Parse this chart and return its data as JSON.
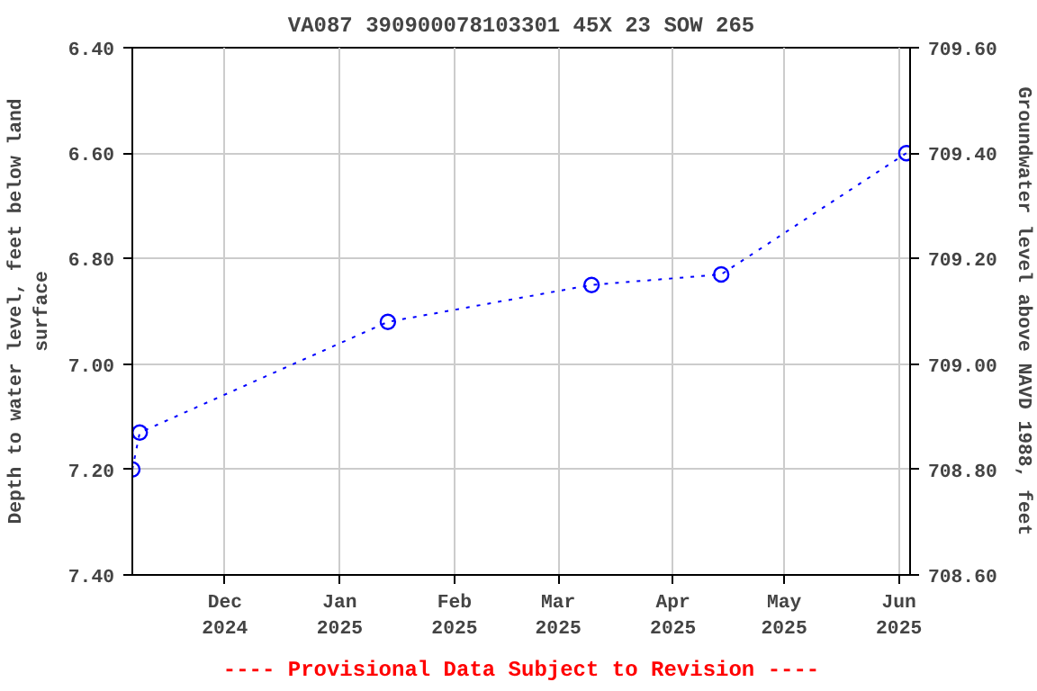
{
  "chart_data": {
    "type": "line",
    "title": "VA087 390900078103301 45X 23 SOW 265",
    "ylabel": "Depth to water level, feet below land surface",
    "y2label": "Groundwater level above NAVD 1988, feet",
    "x": [
      "2024-11-06",
      "2024-11-08",
      "2025-01-14",
      "2025-03-10",
      "2025-04-14",
      "2025-06-03"
    ],
    "series": [
      {
        "color": "#0000ff",
        "values": [
          7.2,
          7.13,
          6.92,
          6.85,
          6.83,
          6.6
        ]
      }
    ],
    "xlim": [
      "2024-11-06",
      "2025-06-04"
    ],
    "xticks": [
      {
        "value": "2024-12-01",
        "label": "Dec\n2024"
      },
      {
        "value": "2025-01-01",
        "label": "Jan\n2025"
      },
      {
        "value": "2025-02-01",
        "label": "Feb\n2025"
      },
      {
        "value": "2025-03-01",
        "label": "Mar\n2025"
      },
      {
        "value": "2025-04-01",
        "label": "Apr\n2025"
      },
      {
        "value": "2025-05-01",
        "label": "May\n2025"
      },
      {
        "value": "2025-06-01",
        "label": "Jun\n2025"
      }
    ],
    "ylim": [
      7.4,
      6.4
    ],
    "yticks": [
      {
        "value": 6.4,
        "label": "6.40"
      },
      {
        "value": 6.6,
        "label": "6.60"
      },
      {
        "value": 6.8,
        "label": "6.80"
      },
      {
        "value": 7.0,
        "label": "7.00"
      },
      {
        "value": 7.2,
        "label": "7.20"
      },
      {
        "value": 7.4,
        "label": "7.40"
      }
    ],
    "y2lim": [
      708.6,
      709.6
    ],
    "y2ticks": [
      {
        "value": 708.6,
        "label": "708.60"
      },
      {
        "value": 708.8,
        "label": "708.80"
      },
      {
        "value": 709.0,
        "label": "709.00"
      },
      {
        "value": 709.2,
        "label": "709.20"
      },
      {
        "value": 709.4,
        "label": "709.40"
      },
      {
        "value": 709.6,
        "label": "709.60"
      }
    ],
    "annotations": [
      "---- Provisional Data Subject to Revision ----"
    ],
    "grid": true,
    "marker": "circle",
    "line_style": "dotted"
  }
}
